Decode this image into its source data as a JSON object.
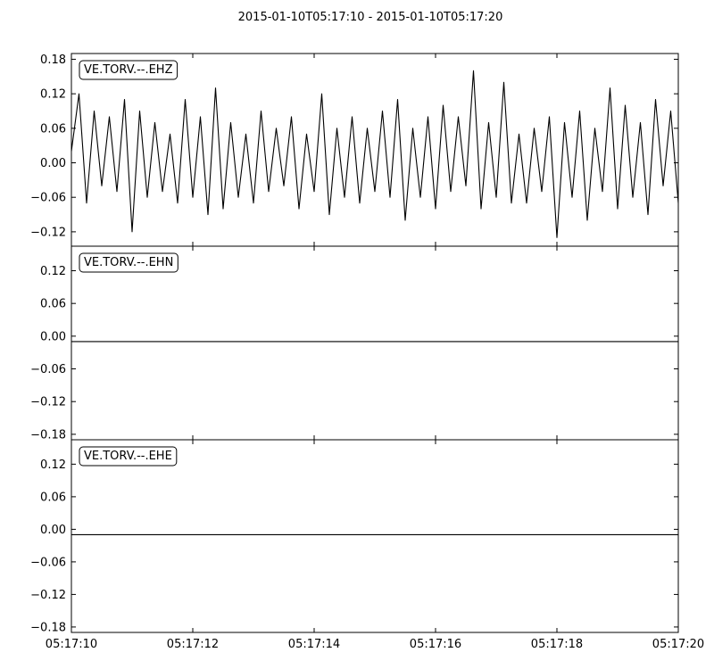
{
  "title": "2015-01-10T05:17:10  -  2015-01-10T05:17:20",
  "chart_data": [
    {
      "type": "line",
      "channel": "VE.TORV.--.EHZ",
      "ylim": [
        -0.145,
        0.19
      ],
      "yticks": [
        "0.18",
        "0.12",
        "0.06",
        "0.00",
        "−0.06",
        "−0.12"
      ],
      "ytick_values": [
        0.18,
        0.12,
        0.06,
        0.0,
        -0.06,
        -0.12
      ],
      "x": [
        "05:17:10",
        "05:17:10.125",
        "05:17:10.25",
        "05:17:10.375",
        "05:17:10.5",
        "05:17:10.625",
        "05:17:10.75",
        "05:17:10.875",
        "05:17:11",
        "05:17:11.125",
        "05:17:11.25",
        "05:17:11.375",
        "05:17:11.5",
        "05:17:11.625",
        "05:17:11.75",
        "05:17:11.875",
        "05:17:12",
        "05:17:12.125",
        "05:17:12.25",
        "05:17:12.375",
        "05:17:12.5",
        "05:17:12.625",
        "05:17:12.75",
        "05:17:12.875",
        "05:17:13",
        "05:17:13.125",
        "05:17:13.25",
        "05:17:13.375",
        "05:17:13.5",
        "05:17:13.625",
        "05:17:13.75",
        "05:17:13.875",
        "05:17:14",
        "05:17:14.125",
        "05:17:14.25",
        "05:17:14.375",
        "05:17:14.5",
        "05:17:14.625",
        "05:17:14.75",
        "05:17:14.875",
        "05:17:15",
        "05:17:15.125",
        "05:17:15.25",
        "05:17:15.375",
        "05:17:15.5",
        "05:17:15.625",
        "05:17:15.75",
        "05:17:15.875",
        "05:17:16",
        "05:17:16.125",
        "05:17:16.25",
        "05:17:16.375",
        "05:17:16.5",
        "05:17:16.625",
        "05:17:16.75",
        "05:17:16.875",
        "05:17:17",
        "05:17:17.125",
        "05:17:17.25",
        "05:17:17.375",
        "05:17:17.5",
        "05:17:17.625",
        "05:17:17.75",
        "05:17:17.875",
        "05:17:18",
        "05:17:18.125",
        "05:17:18.25",
        "05:17:18.375",
        "05:17:18.5",
        "05:17:18.625",
        "05:17:18.75",
        "05:17:18.875",
        "05:17:19",
        "05:17:19.125",
        "05:17:19.25",
        "05:17:19.375",
        "05:17:19.5",
        "05:17:19.625",
        "05:17:19.75",
        "05:17:19.875",
        "05:17:20"
      ],
      "values": [
        0.02,
        0.12,
        -0.07,
        0.09,
        -0.04,
        0.08,
        -0.05,
        0.11,
        -0.12,
        0.09,
        -0.06,
        0.07,
        -0.05,
        0.05,
        -0.07,
        0.11,
        -0.06,
        0.08,
        -0.09,
        0.13,
        -0.08,
        0.07,
        -0.06,
        0.05,
        -0.07,
        0.09,
        -0.05,
        0.06,
        -0.04,
        0.08,
        -0.08,
        0.05,
        -0.05,
        0.12,
        -0.09,
        0.06,
        -0.06,
        0.08,
        -0.07,
        0.06,
        -0.05,
        0.09,
        -0.06,
        0.11,
        -0.1,
        0.06,
        -0.06,
        0.08,
        -0.08,
        0.1,
        -0.05,
        0.08,
        -0.04,
        0.16,
        -0.08,
        0.07,
        -0.06,
        0.14,
        -0.07,
        0.05,
        -0.07,
        0.06,
        -0.05,
        0.08,
        -0.13,
        0.07,
        -0.06,
        0.09,
        -0.1,
        0.06,
        -0.05,
        0.13,
        -0.08,
        0.1,
        -0.06,
        0.07,
        -0.09,
        0.11,
        -0.04,
        0.09,
        -0.07
      ]
    },
    {
      "type": "line",
      "channel": "VE.TORV.--.EHN",
      "ylim": [
        -0.19,
        0.165
      ],
      "yticks": [
        "0.12",
        "0.06",
        "0.00",
        "−0.06",
        "−0.12",
        "−0.18"
      ],
      "ytick_values": [
        0.12,
        0.06,
        0.0,
        -0.06,
        -0.12,
        -0.18
      ],
      "x": [
        "05:17:10",
        "05:17:20"
      ],
      "values": [
        -0.01,
        -0.01
      ]
    },
    {
      "type": "line",
      "channel": "VE.TORV.--.EHE",
      "ylim": [
        -0.19,
        0.165
      ],
      "yticks": [
        "0.12",
        "0.06",
        "0.00",
        "−0.06",
        "−0.12",
        "−0.18"
      ],
      "ytick_values": [
        0.12,
        0.06,
        0.0,
        -0.06,
        -0.12,
        -0.18
      ],
      "x": [
        "05:17:10",
        "05:17:20"
      ],
      "values": [
        -0.01,
        -0.01
      ]
    }
  ],
  "xaxis": {
    "range": [
      "05:17:10",
      "05:17:20"
    ],
    "ticks": [
      "05:17:10",
      "05:17:12",
      "05:17:14",
      "05:17:16",
      "05:17:18",
      "05:17:20"
    ]
  }
}
